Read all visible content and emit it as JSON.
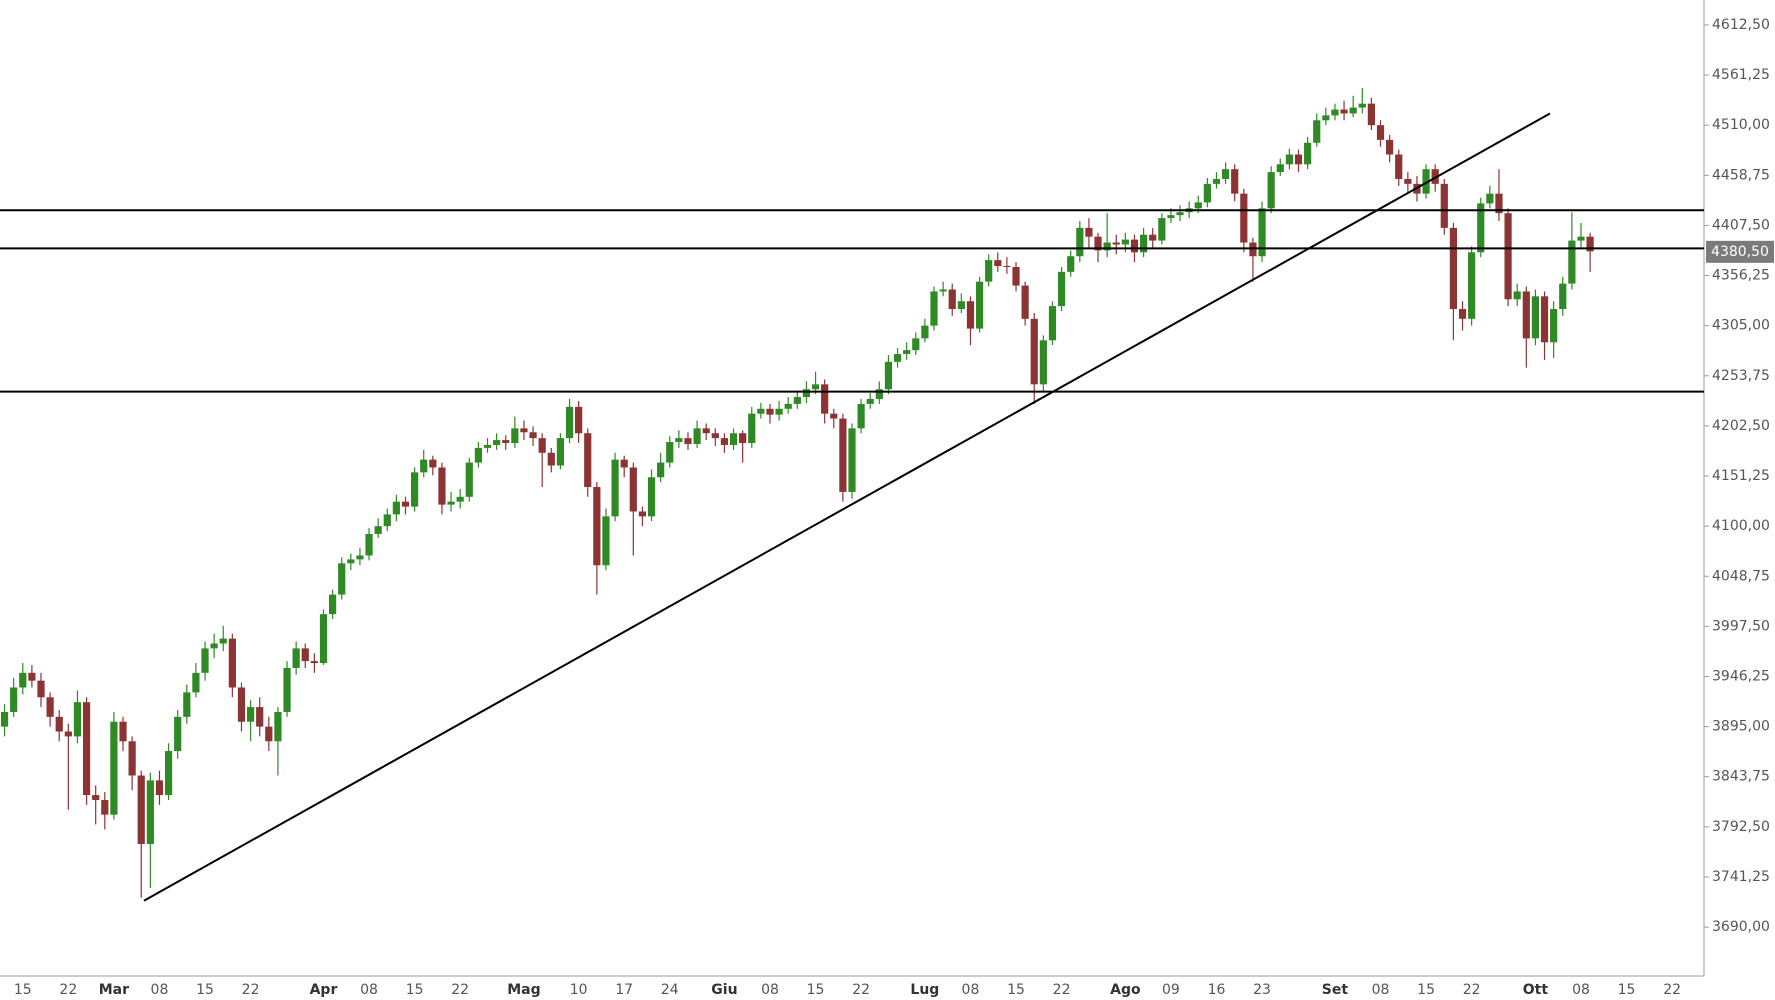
{
  "chart_data": {
    "type": "candlestick",
    "categories": [
      null,
      null,
      "15",
      null,
      null,
      null,
      null,
      "22",
      null,
      null,
      null,
      null,
      "Mar",
      null,
      null,
      null,
      null,
      "08",
      null,
      null,
      null,
      null,
      "15",
      null,
      null,
      null,
      null,
      "22",
      null,
      null,
      null,
      null,
      null,
      null,
      null,
      "Apr",
      null,
      null,
      null,
      null,
      "08",
      null,
      null,
      null,
      null,
      "15",
      null,
      null,
      null,
      null,
      "22",
      null,
      null,
      null,
      null,
      null,
      null,
      "Mag",
      null,
      null,
      null,
      null,
      null,
      "10",
      null,
      null,
      null,
      null,
      "17",
      null,
      null,
      null,
      null,
      "24",
      null,
      null,
      null,
      null,
      null,
      "Giu",
      null,
      null,
      null,
      null,
      "08",
      null,
      null,
      null,
      null,
      "15",
      null,
      null,
      null,
      null,
      "22",
      null,
      null,
      null,
      null,
      null,
      null,
      "Lug",
      null,
      null,
      null,
      null,
      "08",
      null,
      null,
      null,
      null,
      "15",
      null,
      null,
      null,
      null,
      "22",
      null,
      null,
      null,
      null,
      null,
      null,
      "Ago",
      null,
      null,
      null,
      null,
      "09",
      null,
      null,
      null,
      null,
      "16",
      null,
      null,
      null,
      null,
      "23",
      null,
      null,
      null,
      null,
      null,
      null,
      null,
      "Set",
      null,
      null,
      null,
      null,
      "08",
      null,
      null,
      null,
      null,
      "15",
      null,
      null,
      null,
      null,
      "22",
      null,
      null,
      null,
      null,
      null,
      null,
      "Ott",
      null,
      null,
      null,
      null,
      "08",
      null,
      null,
      null,
      null,
      "15",
      null,
      null,
      null,
      null,
      "22",
      null,
      null,
      null
    ],
    "open": [
      3895,
      3910,
      3935,
      3950,
      3942,
      3925,
      3905,
      3890,
      3885,
      3920,
      3825,
      3820,
      3805,
      3900,
      3880,
      3845,
      3775,
      3840,
      3825,
      3870,
      3905,
      3930,
      3950,
      3975,
      3980,
      3985,
      3935,
      3900,
      3915,
      3895,
      3880,
      3910,
      3955,
      3975,
      3962,
      3960,
      4010,
      4030,
      4062,
      4066,
      4070,
      4092,
      4100,
      4112,
      4125,
      4120,
      4155,
      4168,
      4160,
      4122,
      4125,
      4130,
      4165,
      4180,
      4183,
      4188,
      4185,
      4200,
      4196,
      4190,
      4175,
      4162,
      4190,
      4222,
      4195,
      4140,
      4060,
      4110,
      4168,
      4160,
      4115,
      4110,
      4150,
      4165,
      4186,
      4190,
      4184,
      4200,
      4195,
      4190,
      4183,
      4195,
      4185,
      4215,
      4220,
      4214,
      4220,
      4225,
      4232,
      4240,
      4245,
      4215,
      4210,
      4135,
      4200,
      4225,
      4230,
      4240,
      4268,
      4276,
      4280,
      4292,
      4305,
      4340,
      4342,
      4322,
      4330,
      4302,
      4350,
      4372,
      4366,
      4365,
      4346,
      4312,
      4245,
      4290,
      4325,
      4360,
      4376,
      4405,
      4396,
      4382,
      4390,
      4388,
      4393,
      4380,
      4398,
      4392,
      4415,
      4418,
      4421,
      4425,
      4431,
      4450,
      4455,
      4465,
      4440,
      4390,
      4376,
      4425,
      4462,
      4470,
      4480,
      4470,
      4492,
      4515,
      4520,
      4526,
      4522,
      4528,
      4532,
      4510,
      4495,
      4480,
      4455,
      4450,
      4440,
      4465,
      4450,
      4405,
      4322,
      4312,
      4380,
      4430,
      4440,
      4420,
      4332,
      4340,
      4292,
      4335,
      4288,
      4322,
      4348,
      4392,
      4396,
      null,
      null,
      null,
      null,
      null,
      null,
      null,
      null,
      null,
      null,
      null,
      null
    ],
    "high": [
      3918,
      3945,
      3960,
      3958,
      3950,
      3930,
      3912,
      3898,
      3932,
      3925,
      3835,
      3828,
      3910,
      3905,
      3885,
      3850,
      3848,
      3850,
      3878,
      3912,
      3938,
      3960,
      3982,
      3990,
      3998,
      3990,
      3940,
      3922,
      3925,
      3905,
      3915,
      3962,
      3982,
      3980,
      3970,
      4015,
      4035,
      4068,
      4072,
      4078,
      4098,
      4108,
      4118,
      4132,
      4130,
      4160,
      4178,
      4172,
      4165,
      4135,
      4138,
      4170,
      4186,
      4190,
      4195,
      4193,
      4212,
      4208,
      4202,
      4195,
      4180,
      4195,
      4230,
      4228,
      4200,
      4145,
      4118,
      4175,
      4172,
      4165,
      4120,
      4158,
      4175,
      4192,
      4198,
      4196,
      4208,
      4205,
      4200,
      4195,
      4200,
      4198,
      4222,
      4226,
      4225,
      4228,
      4232,
      4238,
      4248,
      4258,
      4250,
      4220,
      4215,
      4205,
      4230,
      4236,
      4248,
      4275,
      4282,
      4288,
      4298,
      4312,
      4345,
      4350,
      4348,
      4338,
      4335,
      4355,
      4378,
      4380,
      4375,
      4370,
      4350,
      4318,
      4295,
      4330,
      4365,
      4382,
      4412,
      4415,
      4400,
      4420,
      4398,
      4400,
      4398,
      4405,
      4405,
      4420,
      4425,
      4428,
      4432,
      4438,
      4456,
      4462,
      4472,
      4470,
      4445,
      4395,
      4432,
      4468,
      4476,
      4486,
      4485,
      4498,
      4522,
      4528,
      4532,
      4535,
      4540,
      4548,
      4538,
      4515,
      4500,
      4485,
      4462,
      4458,
      4470,
      4470,
      4455,
      4410,
      4330,
      4386,
      4436,
      4448,
      4465,
      4425,
      4348,
      4345,
      4342,
      4340,
      4330,
      4355,
      4421,
      4410,
      4400,
      null,
      null,
      null,
      null,
      null,
      null,
      null,
      null,
      null,
      null,
      null,
      null
    ],
    "low": [
      3885,
      3905,
      3928,
      3935,
      3915,
      3895,
      3880,
      3810,
      3878,
      3815,
      3795,
      3790,
      3800,
      3870,
      3830,
      3720,
      3730,
      3815,
      3820,
      3862,
      3898,
      3925,
      3942,
      3965,
      3972,
      3925,
      3890,
      3880,
      3885,
      3870,
      3845,
      3905,
      3948,
      3955,
      3950,
      3958,
      4005,
      4025,
      4055,
      4060,
      4065,
      4088,
      4095,
      4105,
      4112,
      4115,
      4150,
      4152,
      4112,
      4115,
      4118,
      4125,
      4160,
      4175,
      4178,
      4178,
      4180,
      4188,
      4182,
      4140,
      4155,
      4158,
      4185,
      4185,
      4130,
      4030,
      4055,
      4105,
      4150,
      4070,
      4100,
      4105,
      4145,
      4160,
      4180,
      4178,
      4180,
      4188,
      4182,
      4175,
      4178,
      4165,
      4180,
      4210,
      4205,
      4208,
      4215,
      4220,
      4226,
      4235,
      4205,
      4200,
      4125,
      4128,
      4195,
      4220,
      4225,
      4235,
      4262,
      4270,
      4275,
      4288,
      4300,
      4335,
      4315,
      4318,
      4285,
      4298,
      4345,
      4360,
      4358,
      4340,
      4305,
      4225,
      4238,
      4285,
      4320,
      4355,
      4370,
      4385,
      4370,
      4375,
      4378,
      4380,
      4370,
      4375,
      4385,
      4388,
      4410,
      4412,
      4415,
      4420,
      4426,
      4445,
      4450,
      4432,
      4380,
      4350,
      4370,
      4420,
      4458,
      4465,
      4462,
      4465,
      4488,
      4510,
      4515,
      4515,
      4518,
      4522,
      4505,
      4488,
      4472,
      4448,
      4442,
      4432,
      4435,
      4442,
      4398,
      4290,
      4300,
      4305,
      4375,
      4425,
      4412,
      4325,
      4325,
      4262,
      4285,
      4270,
      4272,
      4315,
      4342,
      4385,
      4360,
      null,
      null,
      null,
      null,
      null,
      null,
      null,
      null,
      null,
      null,
      null,
      null
    ],
    "close": [
      3910,
      3935,
      3950,
      3942,
      3925,
      3905,
      3890,
      3885,
      3920,
      3825,
      3820,
      3805,
      3900,
      3880,
      3845,
      3775,
      3840,
      3825,
      3870,
      3905,
      3930,
      3950,
      3975,
      3980,
      3985,
      3935,
      3900,
      3915,
      3895,
      3880,
      3910,
      3955,
      3975,
      3962,
      3960,
      4010,
      4030,
      4062,
      4066,
      4070,
      4092,
      4100,
      4112,
      4125,
      4120,
      4155,
      4168,
      4160,
      4122,
      4125,
      4130,
      4165,
      4180,
      4183,
      4188,
      4185,
      4200,
      4196,
      4190,
      4175,
      4162,
      4190,
      4222,
      4195,
      4140,
      4060,
      4110,
      4168,
      4160,
      4115,
      4110,
      4150,
      4165,
      4186,
      4190,
      4184,
      4200,
      4195,
      4190,
      4183,
      4195,
      4185,
      4215,
      4220,
      4214,
      4220,
      4225,
      4232,
      4240,
      4245,
      4215,
      4210,
      4135,
      4200,
      4225,
      4230,
      4240,
      4268,
      4276,
      4280,
      4292,
      4305,
      4340,
      4342,
      4322,
      4330,
      4302,
      4350,
      4372,
      4366,
      4365,
      4346,
      4312,
      4245,
      4290,
      4325,
      4360,
      4376,
      4405,
      4396,
      4382,
      4390,
      4388,
      4393,
      4380,
      4398,
      4392,
      4415,
      4418,
      4421,
      4425,
      4431,
      4450,
      4455,
      4465,
      4440,
      4390,
      4376,
      4425,
      4462,
      4470,
      4480,
      4470,
      4492,
      4515,
      4520,
      4526,
      4522,
      4528,
      4532,
      4510,
      4495,
      4480,
      4455,
      4450,
      4440,
      4465,
      4450,
      4405,
      4322,
      4312,
      4380,
      4430,
      4440,
      4420,
      4332,
      4340,
      4292,
      4335,
      4288,
      4322,
      4348,
      4392,
      4396,
      4381,
      null,
      null,
      null,
      null,
      null,
      null,
      null,
      null,
      null,
      null,
      null,
      null
    ],
    "up_color": "#2f8a26",
    "down_color": "#8c3434",
    "line_color": "#000000",
    "ylim": [
      3640,
      4638
    ],
    "yticks": [
      {
        "value": 3690,
        "label": "3690,00"
      },
      {
        "value": 3741.25,
        "label": "3741,25"
      },
      {
        "value": 3792.5,
        "label": "3792,50"
      },
      {
        "value": 3843.75,
        "label": "3843,75"
      },
      {
        "value": 3895,
        "label": "3895,00"
      },
      {
        "value": 3946.25,
        "label": "3946,25"
      },
      {
        "value": 3997.5,
        "label": "3997,50"
      },
      {
        "value": 4048.75,
        "label": "4048,75"
      },
      {
        "value": 4100,
        "label": "4100,00"
      },
      {
        "value": 4151.25,
        "label": "4151,25"
      },
      {
        "value": 4202.5,
        "label": "4202,50"
      },
      {
        "value": 4253.75,
        "label": "4253,75"
      },
      {
        "value": 4305,
        "label": "4305,00"
      },
      {
        "value": 4356.25,
        "label": "4356,25"
      },
      {
        "value": 4407.5,
        "label": "4407,50"
      },
      {
        "value": 4458.75,
        "label": "4458,75"
      },
      {
        "value": 4510,
        "label": "4510,00"
      },
      {
        "value": 4561.25,
        "label": "4561,25"
      },
      {
        "value": 4612.5,
        "label": "4612,50"
      }
    ],
    "hlines": [
      4423,
      4384,
      4237.5
    ],
    "trendline": {
      "x": [
        15.3,
        169.6
      ],
      "y": [
        3717,
        4522
      ]
    },
    "last_price": {
      "value": 4380.5,
      "label": "4380,50"
    },
    "grid": false
  }
}
